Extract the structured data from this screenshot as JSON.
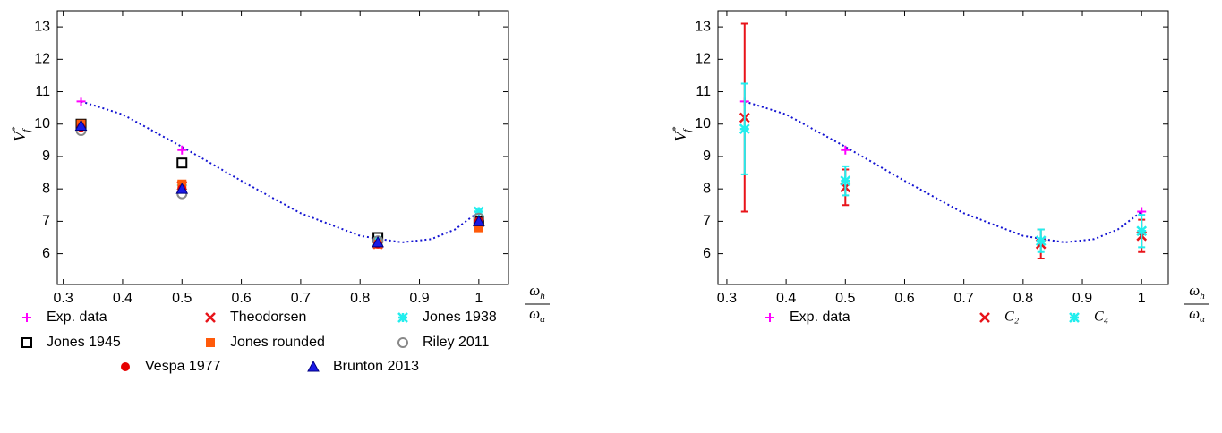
{
  "chart_data": [
    {
      "type": "scatter",
      "x": [
        0.33,
        0.5,
        0.83,
        1
      ],
      "xlim": [
        0.29,
        1.05
      ],
      "ylim": [
        5.05,
        13.5
      ],
      "xticks": [
        0.3,
        0.4,
        0.5,
        0.6,
        0.7,
        0.8,
        0.9,
        1
      ],
      "yticks": [
        6,
        7,
        8,
        9,
        10,
        11,
        12,
        13
      ],
      "ylabel": {
        "main": "V",
        "sup": "*",
        "sub": "f"
      },
      "xlabel": {
        "num": "ω",
        "num_sub": "h",
        "den": "ω",
        "den_sub": "α"
      },
      "fit": {
        "color": "#1414d2",
        "x": [
          0.33,
          0.4,
          0.5,
          0.6,
          0.7,
          0.8,
          0.87,
          0.92,
          0.96,
          1
        ],
        "y": [
          10.7,
          10.3,
          9.3,
          8.25,
          7.25,
          6.55,
          6.35,
          6.45,
          6.75,
          7.3
        ]
      },
      "series": [
        {
          "name": "Exp. data",
          "color": "#ff00ff",
          "marker": "plus",
          "values": [
            10.7,
            9.2,
            6.4,
            7.3
          ]
        },
        {
          "name": "Theodorsen",
          "color": "#e8141a",
          "marker": "cross",
          "values": [
            10.0,
            8.1,
            6.3,
            7.0
          ]
        },
        {
          "name": "Jones 1938",
          "color": "#22eeee",
          "marker": "star",
          "values": [
            10.0,
            8.0,
            6.4,
            7.3
          ]
        },
        {
          "name": "Jones 1945",
          "color": "#000000",
          "marker": "square-open",
          "values": [
            10.0,
            8.8,
            6.5,
            7.0
          ]
        },
        {
          "name": "Jones rounded",
          "color": "#ff5a0a",
          "marker": "square",
          "values": [
            10.0,
            8.15,
            6.3,
            6.8
          ]
        },
        {
          "name": "Riley 2011",
          "color": "#888888",
          "marker": "circle-open",
          "values": [
            9.8,
            7.85,
            6.4,
            7.1
          ]
        },
        {
          "name": "Vespa 1977",
          "color": "#e60000",
          "marker": "circle",
          "values": [
            9.9,
            8.0,
            6.3,
            7.0
          ]
        },
        {
          "name": "Brunton 2013",
          "color": "#1a1ae6",
          "marker": "triangle",
          "values": [
            9.95,
            8.0,
            6.35,
            7.0
          ]
        }
      ]
    },
    {
      "type": "errorbar",
      "x": [
        0.33,
        0.5,
        0.83,
        1
      ],
      "xlim": [
        0.285,
        1.045
      ],
      "ylim": [
        5.05,
        13.5
      ],
      "xticks": [
        0.3,
        0.4,
        0.5,
        0.6,
        0.7,
        0.8,
        0.9,
        1
      ],
      "yticks": [
        6,
        7,
        8,
        9,
        10,
        11,
        12,
        13
      ],
      "ylabel": {
        "main": "V",
        "sup": "*",
        "sub": "f"
      },
      "xlabel": {
        "num": "ω",
        "num_sub": "h",
        "den": "ω",
        "den_sub": "α"
      },
      "fit": {
        "color": "#1414d2",
        "x": [
          0.33,
          0.4,
          0.5,
          0.6,
          0.7,
          0.8,
          0.87,
          0.92,
          0.96,
          1
        ],
        "y": [
          10.7,
          10.3,
          9.3,
          8.25,
          7.25,
          6.55,
          6.35,
          6.45,
          6.75,
          7.3
        ]
      },
      "series": [
        {
          "name": "Exp. data",
          "color": "#ff00ff",
          "marker": "plus",
          "values": [
            10.7,
            9.2,
            6.4,
            7.3
          ]
        },
        {
          "name": "C₂",
          "color": "#e8141a",
          "marker": "cross",
          "values": [
            10.2,
            8.05,
            6.3,
            6.55
          ],
          "errors": [
            2.9,
            0.55,
            0.45,
            0.5
          ]
        },
        {
          "name": "C₄",
          "color": "#22eeee",
          "marker": "star",
          "values": [
            9.85,
            8.25,
            6.4,
            6.7
          ],
          "errors": [
            1.4,
            0.45,
            0.35,
            0.5
          ]
        }
      ]
    }
  ]
}
